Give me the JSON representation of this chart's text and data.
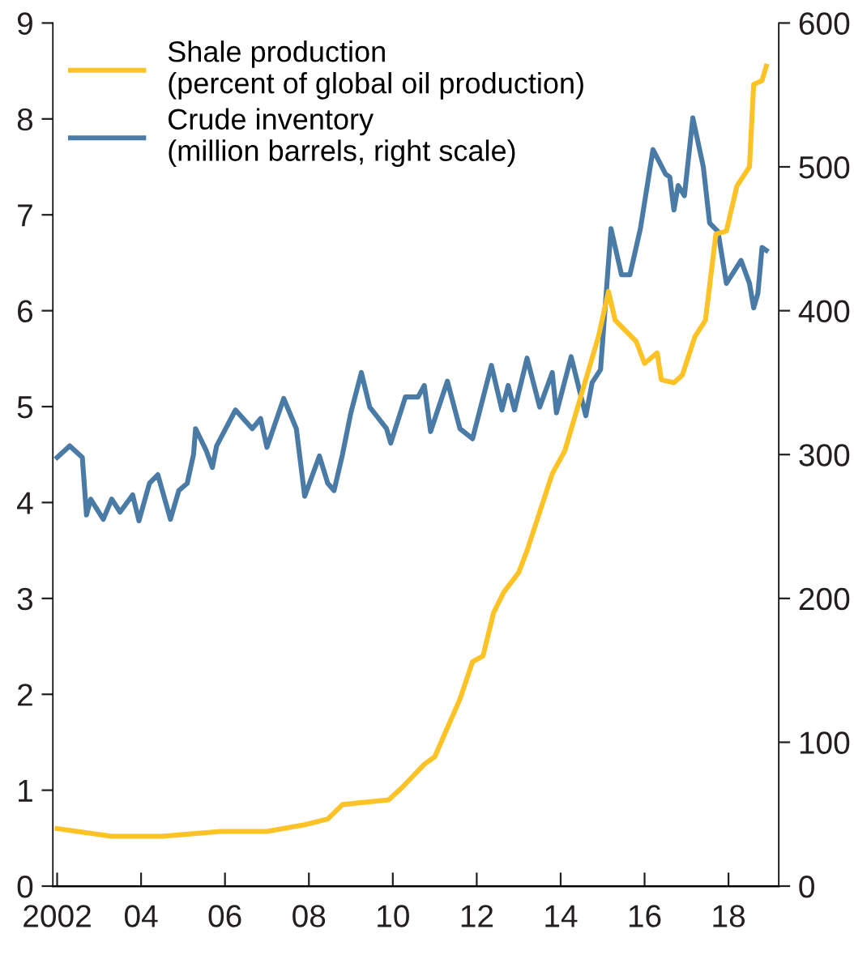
{
  "chart_data": {
    "type": "line",
    "legend": "top left",
    "grid": false,
    "xlim": [
      2001.9,
      2019.2
    ],
    "xticks": [
      {
        "value": 2002,
        "label": "2002"
      },
      {
        "value": 2004,
        "label": "04"
      },
      {
        "value": 2006,
        "label": "06"
      },
      {
        "value": 2008,
        "label": "08"
      },
      {
        "value": 2010,
        "label": "10"
      },
      {
        "value": 2012,
        "label": "12"
      },
      {
        "value": 2014,
        "label": "14"
      },
      {
        "value": 2016,
        "label": "16"
      },
      {
        "value": 2018,
        "label": "18"
      }
    ],
    "ylim": [
      0,
      9
    ],
    "yticks": [
      0,
      1,
      2,
      3,
      4,
      5,
      6,
      7,
      8,
      9
    ],
    "y2lim": [
      0,
      600
    ],
    "y2ticks": [
      0,
      100,
      200,
      300,
      400,
      500,
      600
    ],
    "series": [
      {
        "name": "Shale production\n(percent of global oil production)",
        "color": "#fcc226",
        "x": [
          2002.0,
          2003.3,
          2004.5,
          2005.9,
          2007.0,
          2007.9,
          2008.45,
          2008.8,
          2009.9,
          2010.2,
          2010.75,
          2011.0,
          2011.25,
          2011.6,
          2011.9,
          2012.15,
          2012.4,
          2012.65,
          2013.0,
          2013.2,
          2013.8,
          2014.1,
          2014.9,
          2015.14,
          2015.3,
          2015.8,
          2016.0,
          2016.3,
          2016.4,
          2016.7,
          2016.9,
          2017.2,
          2017.45,
          2017.7,
          2017.95,
          2018.2,
          2018.5,
          2018.6,
          2018.8,
          2018.9
        ],
        "values": [
          0.6,
          0.52,
          0.52,
          0.57,
          0.57,
          0.64,
          0.7,
          0.85,
          0.9,
          1.02,
          1.27,
          1.35,
          1.6,
          1.95,
          2.34,
          2.4,
          2.85,
          3.07,
          3.27,
          3.5,
          4.3,
          4.54,
          5.73,
          6.2,
          5.9,
          5.68,
          5.45,
          5.56,
          5.28,
          5.25,
          5.33,
          5.73,
          5.9,
          6.8,
          6.83,
          7.3,
          7.5,
          8.36,
          8.4,
          8.55
        ]
      },
      {
        "name": "Crude inventory\n(million barrels, right scale)",
        "color": "#4a7ba6",
        "axis": "y2",
        "x": [
          2002.0,
          2002.3,
          2002.6,
          2002.7,
          2002.8,
          2003.1,
          2003.3,
          2003.5,
          2003.8,
          2003.95,
          2004.2,
          2004.4,
          2004.7,
          2004.9,
          2005.1,
          2005.25,
          2005.3,
          2005.55,
          2005.7,
          2005.8,
          2006.25,
          2006.65,
          2006.85,
          2007.0,
          2007.4,
          2007.7,
          2007.9,
          2008.25,
          2008.45,
          2008.6,
          2008.8,
          2009.0,
          2009.25,
          2009.45,
          2009.85,
          2009.95,
          2010.3,
          2010.6,
          2010.75,
          2010.9,
          2011.3,
          2011.6,
          2011.9,
          2012.35,
          2012.6,
          2012.75,
          2012.9,
          2013.2,
          2013.5,
          2013.8,
          2013.9,
          2014.25,
          2014.6,
          2014.75,
          2014.95,
          2015.2,
          2015.45,
          2015.65,
          2015.9,
          2016.2,
          2016.5,
          2016.6,
          2016.7,
          2016.8,
          2016.95,
          2017.15,
          2017.4,
          2017.55,
          2017.75,
          2017.95,
          2018.3,
          2018.5,
          2018.6,
          2018.7,
          2018.8,
          2018.9
        ],
        "values": [
          298,
          306,
          298,
          258,
          269,
          255,
          269,
          260,
          272,
          254,
          280,
          286,
          255,
          275,
          280,
          300,
          318,
          303,
          291,
          306,
          331,
          318,
          325,
          305,
          339,
          318,
          271,
          299,
          280,
          275,
          300,
          329,
          357,
          333,
          318,
          308,
          340,
          340,
          348,
          316,
          351,
          318,
          311,
          362,
          331,
          348,
          331,
          367,
          333,
          357,
          329,
          368,
          327,
          350,
          359,
          457,
          425,
          425,
          457,
          512,
          495,
          493,
          470,
          487,
          480,
          534,
          500,
          461,
          455,
          419,
          435,
          419,
          402,
          412,
          444,
          442
        ]
      }
    ]
  }
}
